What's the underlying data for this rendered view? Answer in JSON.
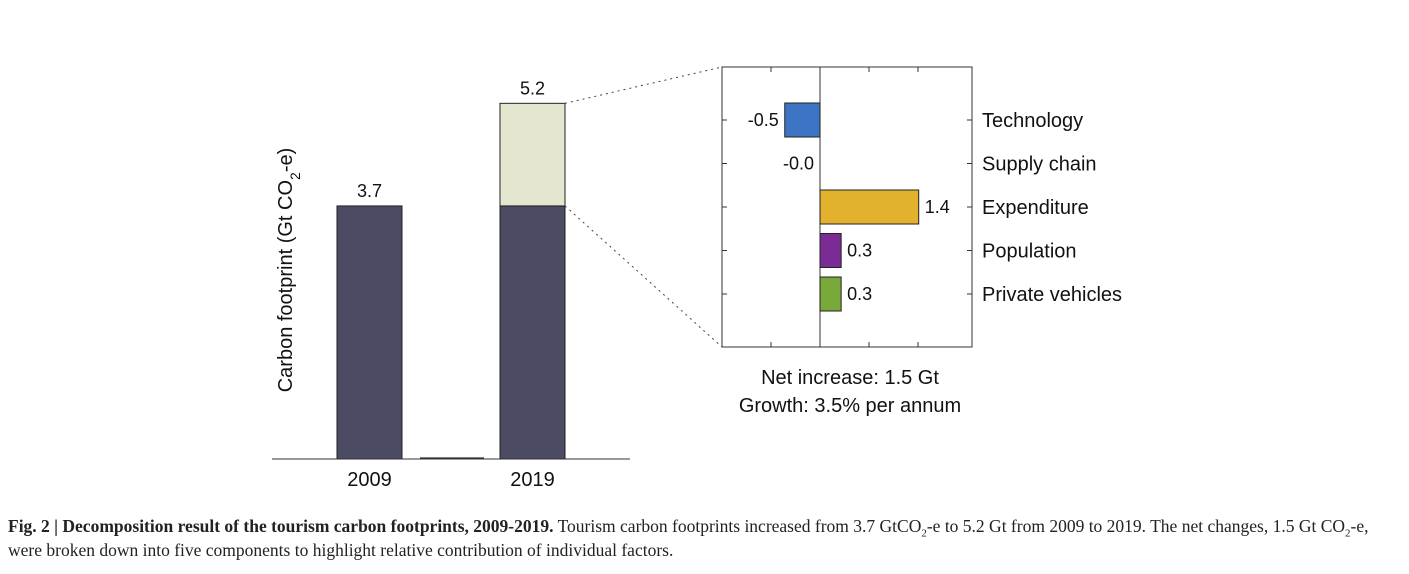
{
  "colors": {
    "base_bar": "#4b4b63",
    "increase_segment": "#e5e6cf",
    "components": [
      "#3c75c3",
      "#3c75c3",
      "#e2b22f",
      "#7b2b94",
      "#79a93a"
    ],
    "axis": "#333333"
  },
  "chart_data": [
    {
      "type": "bar",
      "stacked": true,
      "categories": [
        "2009",
        "2019"
      ],
      "series": [
        {
          "values": [
            3.7,
            3.7
          ]
        },
        {
          "values": [
            0,
            1.5
          ]
        }
      ],
      "totals": [
        3.7,
        5.2
      ],
      "total_labels": [
        "3.7",
        "5.2"
      ],
      "ylabel_parts": {
        "prefix": "Carbon footprint (Gt CO",
        "sub": "2",
        "suffix": "-e)"
      },
      "ylim": [
        0,
        5.5
      ],
      "grid": false
    },
    {
      "type": "bar",
      "orientation": "horizontal",
      "categories": [
        "Technology",
        "Supply chain",
        "Expenditure",
        "Population",
        "Private vehicles"
      ],
      "values": [
        -0.5,
        -0.0,
        1.4,
        0.3,
        0.3
      ],
      "value_labels": [
        "-0.5",
        "-0.0",
        "1.4",
        "0.3",
        "0.3"
      ],
      "xlim": [
        -1.4,
        2.2
      ],
      "grid": false,
      "annotations": [
        "Net increase: 1.5 Gt",
        "Growth: 3.5% per annum"
      ]
    }
  ],
  "caption": {
    "lead": "Fig. 2 | Decomposition result of the tourism carbon footprints, 2009-2019.",
    "text_1": " Tourism carbon footprints increased from 3.7 GtCO",
    "sub_1": "2",
    "text_2": "-e to 5.2 Gt from 2009 to 2019. The net changes, 1.5 Gt CO",
    "sub_2": "2",
    "text_3": "-e, were broken down into five components to highlight relative contribution of individual factors."
  }
}
